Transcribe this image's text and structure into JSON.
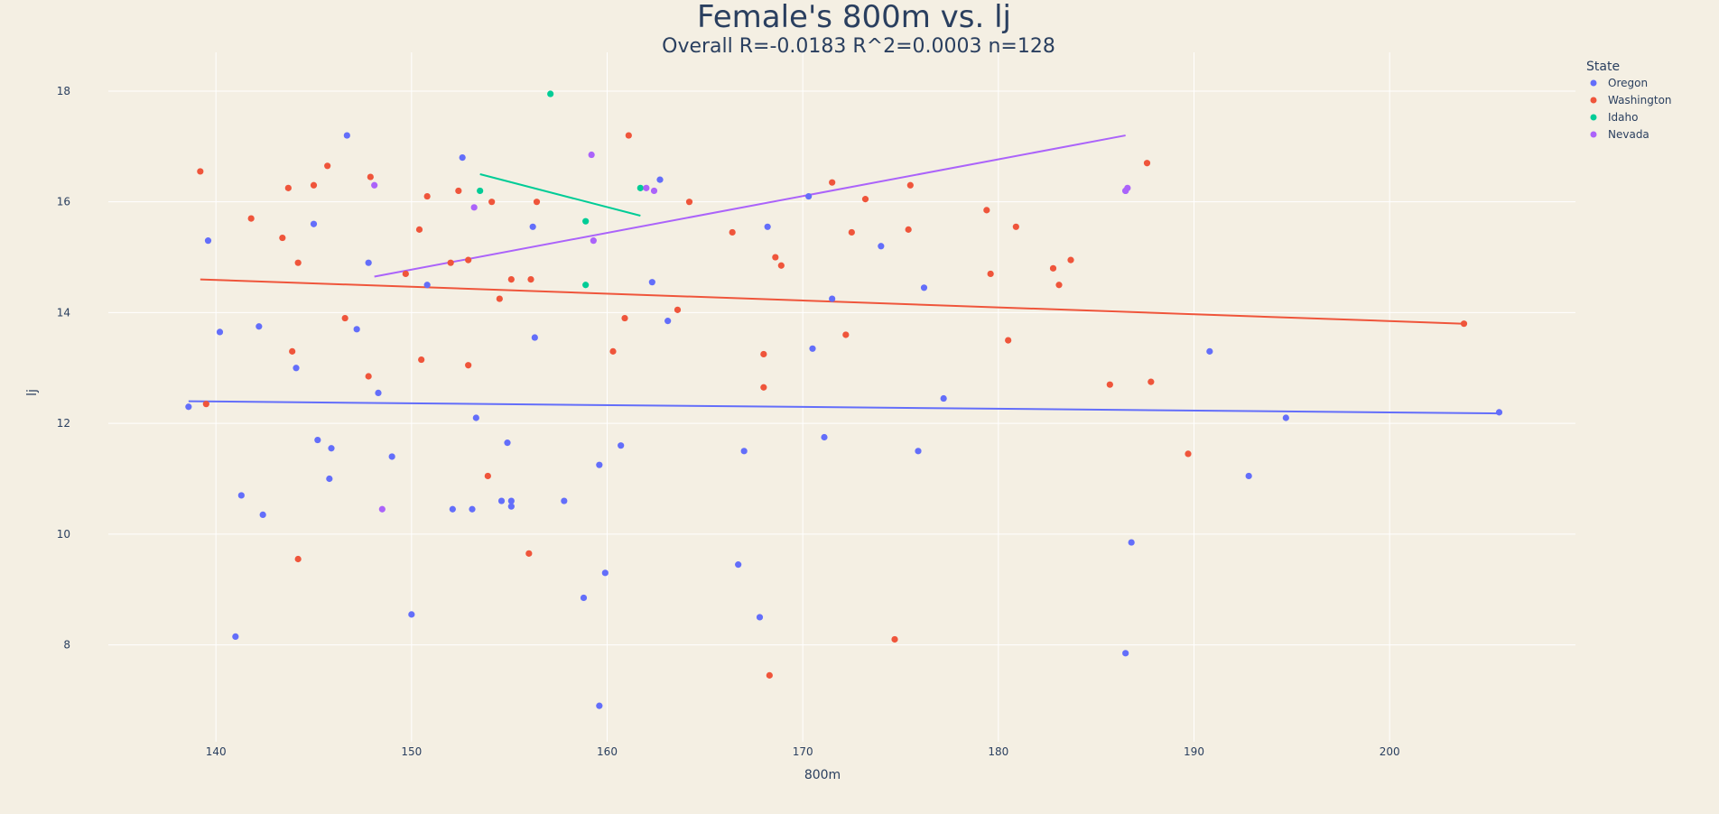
{
  "chart_data": {
    "type": "scatter",
    "title": "Female's 800m vs. lj",
    "subtitle": "Overall R=-0.0183 R^2=0.0003 n=128",
    "xlabel": "800m",
    "ylabel": "lj",
    "xlim": [
      134.5,
      209.5
    ],
    "ylim": [
      6.25,
      18.7
    ],
    "xticks": [
      140,
      150,
      160,
      170,
      180,
      190,
      200
    ],
    "yticks": [
      8,
      10,
      12,
      14,
      16,
      18
    ],
    "grid": true,
    "legend": {
      "title": "State",
      "placement": "top-right"
    },
    "series": [
      {
        "name": "Oregon",
        "color": "#636efa",
        "points": [
          [
            138.6,
            12.3
          ],
          [
            139.6,
            15.3
          ],
          [
            140.2,
            13.65
          ],
          [
            141.0,
            8.15
          ],
          [
            141.3,
            10.7
          ],
          [
            142.2,
            13.75
          ],
          [
            142.4,
            10.35
          ],
          [
            144.1,
            13.0
          ],
          [
            145.0,
            15.6
          ],
          [
            145.2,
            11.7
          ],
          [
            145.8,
            11.0
          ],
          [
            145.9,
            11.55
          ],
          [
            146.7,
            17.2
          ],
          [
            147.2,
            13.7
          ],
          [
            147.8,
            14.9
          ],
          [
            148.3,
            12.55
          ],
          [
            149.0,
            11.4
          ],
          [
            150.0,
            8.55
          ],
          [
            150.8,
            14.5
          ],
          [
            152.1,
            10.45
          ],
          [
            152.6,
            16.8
          ],
          [
            153.1,
            10.45
          ],
          [
            153.3,
            12.1
          ],
          [
            154.6,
            10.6
          ],
          [
            154.9,
            11.65
          ],
          [
            155.1,
            10.5
          ],
          [
            155.1,
            10.6
          ],
          [
            156.2,
            15.55
          ],
          [
            156.3,
            13.55
          ],
          [
            157.8,
            10.6
          ],
          [
            158.8,
            8.85
          ],
          [
            159.6,
            6.9
          ],
          [
            159.6,
            11.25
          ],
          [
            159.9,
            9.3
          ],
          [
            160.7,
            11.6
          ],
          [
            162.3,
            14.55
          ],
          [
            162.7,
            16.4
          ],
          [
            163.1,
            13.85
          ],
          [
            166.7,
            9.45
          ],
          [
            167.0,
            11.5
          ],
          [
            167.8,
            8.5
          ],
          [
            168.2,
            15.55
          ],
          [
            170.3,
            16.1
          ],
          [
            170.5,
            13.35
          ],
          [
            171.1,
            11.75
          ],
          [
            171.5,
            14.25
          ],
          [
            174.0,
            15.2
          ],
          [
            175.9,
            11.5
          ],
          [
            176.2,
            14.45
          ],
          [
            177.2,
            12.45
          ],
          [
            186.5,
            7.85
          ],
          [
            186.5,
            16.2
          ],
          [
            186.8,
            9.85
          ],
          [
            190.8,
            13.3
          ],
          [
            192.8,
            11.05
          ],
          [
            194.7,
            12.1
          ],
          [
            205.6,
            12.2
          ]
        ],
        "trend": [
          [
            138.6,
            12.4
          ],
          [
            205.6,
            12.18
          ]
        ]
      },
      {
        "name": "Washington",
        "color": "#ef553b",
        "points": [
          [
            139.2,
            16.55
          ],
          [
            139.5,
            12.35
          ],
          [
            141.8,
            15.7
          ],
          [
            143.4,
            15.35
          ],
          [
            143.7,
            16.25
          ],
          [
            143.9,
            13.3
          ],
          [
            144.2,
            14.9
          ],
          [
            144.2,
            9.55
          ],
          [
            145.0,
            16.3
          ],
          [
            145.7,
            16.65
          ],
          [
            146.6,
            13.9
          ],
          [
            147.8,
            12.85
          ],
          [
            147.9,
            16.45
          ],
          [
            149.7,
            14.7
          ],
          [
            150.4,
            15.5
          ],
          [
            150.5,
            13.15
          ],
          [
            150.8,
            16.1
          ],
          [
            152.0,
            14.9
          ],
          [
            152.4,
            16.2
          ],
          [
            152.9,
            14.95
          ],
          [
            152.9,
            13.05
          ],
          [
            153.9,
            11.05
          ],
          [
            154.1,
            16.0
          ],
          [
            154.5,
            14.25
          ],
          [
            155.1,
            14.6
          ],
          [
            156.0,
            9.65
          ],
          [
            156.1,
            14.6
          ],
          [
            156.4,
            16.0
          ],
          [
            160.3,
            13.3
          ],
          [
            160.9,
            13.9
          ],
          [
            161.1,
            17.2
          ],
          [
            163.6,
            14.05
          ],
          [
            164.2,
            16.0
          ],
          [
            166.4,
            15.45
          ],
          [
            168.0,
            13.25
          ],
          [
            168.0,
            12.65
          ],
          [
            168.3,
            7.45
          ],
          [
            168.6,
            15.0
          ],
          [
            168.9,
            14.85
          ],
          [
            171.5,
            16.35
          ],
          [
            172.2,
            13.6
          ],
          [
            172.5,
            15.45
          ],
          [
            173.2,
            16.05
          ],
          [
            174.7,
            8.1
          ],
          [
            175.4,
            15.5
          ],
          [
            175.5,
            16.3
          ],
          [
            179.4,
            15.85
          ],
          [
            179.6,
            14.7
          ],
          [
            180.5,
            13.5
          ],
          [
            180.9,
            15.55
          ],
          [
            182.8,
            14.8
          ],
          [
            183.1,
            14.5
          ],
          [
            183.7,
            14.95
          ],
          [
            185.7,
            12.7
          ],
          [
            187.6,
            16.7
          ],
          [
            187.8,
            12.75
          ],
          [
            189.7,
            11.45
          ],
          [
            203.8,
            13.8
          ]
        ],
        "trend": [
          [
            139.2,
            14.6
          ],
          [
            203.8,
            13.8
          ]
        ]
      },
      {
        "name": "Idaho",
        "color": "#00cc96",
        "points": [
          [
            153.5,
            16.2
          ],
          [
            157.1,
            17.95
          ],
          [
            158.9,
            15.65
          ],
          [
            158.9,
            14.5
          ],
          [
            161.7,
            16.25
          ]
        ],
        "trend": [
          [
            153.5,
            16.5
          ],
          [
            161.7,
            15.75
          ]
        ]
      },
      {
        "name": "Nevada",
        "color": "#ab63fa",
        "points": [
          [
            148.1,
            16.3
          ],
          [
            148.5,
            10.45
          ],
          [
            153.2,
            15.9
          ],
          [
            159.2,
            16.85
          ],
          [
            159.3,
            15.3
          ],
          [
            162.0,
            16.25
          ],
          [
            162.4,
            16.2
          ],
          [
            186.5,
            16.2
          ],
          [
            186.6,
            16.25
          ]
        ],
        "trend": [
          [
            148.1,
            14.65
          ],
          [
            186.5,
            17.2
          ]
        ]
      }
    ]
  }
}
